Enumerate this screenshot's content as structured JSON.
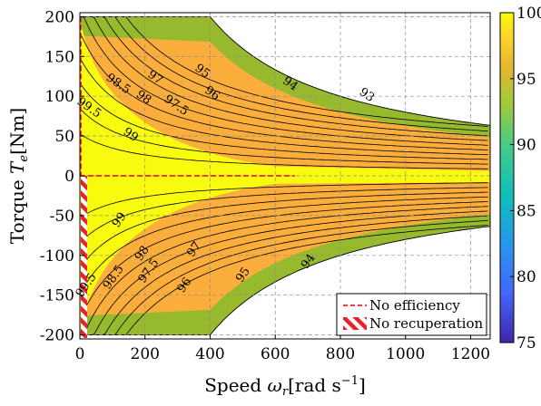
{
  "chart_data": {
    "type": "heatmap",
    "subtype": "efficiency contour map",
    "xlabel": "Speed ω_r [rad s⁻¹]",
    "ylabel": "Torque T_e [Nm]",
    "xlim": [
      0,
      1260
    ],
    "ylim": [
      -205,
      205
    ],
    "x_ticks": [
      0,
      200,
      400,
      600,
      800,
      1000,
      1200
    ],
    "y_ticks": [
      200,
      150,
      100,
      50,
      0,
      -50,
      -100,
      -150,
      -200
    ],
    "colorbar": {
      "ticks": [
        100,
        95,
        90,
        85,
        80,
        75
      ],
      "min": 75,
      "max": 100,
      "colormap": "parula"
    },
    "grid": true,
    "max_torque_nm": 200,
    "base_speed_rad_s": 290,
    "constant_power_limit_nm_rad_s": 80000,
    "contour_levels": [
      99.5,
      99,
      98.5,
      98,
      97.5,
      97,
      96,
      95,
      94,
      93
    ],
    "contour_labels_motoring": [
      {
        "text": "99.5",
        "x": 22,
        "y": 82
      },
      {
        "text": "98.5",
        "x": 112,
        "y": 112
      },
      {
        "text": "99",
        "x": 150,
        "y": 48
      },
      {
        "text": "98",
        "x": 190,
        "y": 95
      },
      {
        "text": "97",
        "x": 225,
        "y": 120
      },
      {
        "text": "97.5",
        "x": 290,
        "y": 85
      },
      {
        "text": "95",
        "x": 370,
        "y": 128
      },
      {
        "text": "96",
        "x": 400,
        "y": 100
      },
      {
        "text": "94",
        "x": 640,
        "y": 112
      },
      {
        "text": "93",
        "x": 875,
        "y": 98
      }
    ],
    "contour_labels_generating": [
      {
        "text": "99.5",
        "x": 28,
        "y": -140
      },
      {
        "text": "98.5",
        "x": 112,
        "y": -130
      },
      {
        "text": "99",
        "x": 130,
        "y": -58
      },
      {
        "text": "98",
        "x": 200,
        "y": -100
      },
      {
        "text": "97.5",
        "x": 220,
        "y": -122
      },
      {
        "text": "97",
        "x": 360,
        "y": -95
      },
      {
        "text": "96",
        "x": 330,
        "y": -140
      },
      {
        "text": "95",
        "x": 510,
        "y": -127
      },
      {
        "text": "94",
        "x": 710,
        "y": -110
      }
    ],
    "no_efficiency_line": {
      "y": 0,
      "x_start": 0,
      "x_end": 660
    },
    "no_recuperation_region": {
      "x_start": 0,
      "x_end": 25,
      "y_start": -205,
      "y_end": 0
    },
    "legend": {
      "position": "bottom-right",
      "entries": [
        "No efficiency",
        "No recuperation"
      ]
    },
    "colors": {
      "high": "#f9fb0e",
      "mid": "#fbae3c",
      "low": "#97b92e",
      "contour": "#000000",
      "no_efficiency": "#e8212b"
    }
  }
}
